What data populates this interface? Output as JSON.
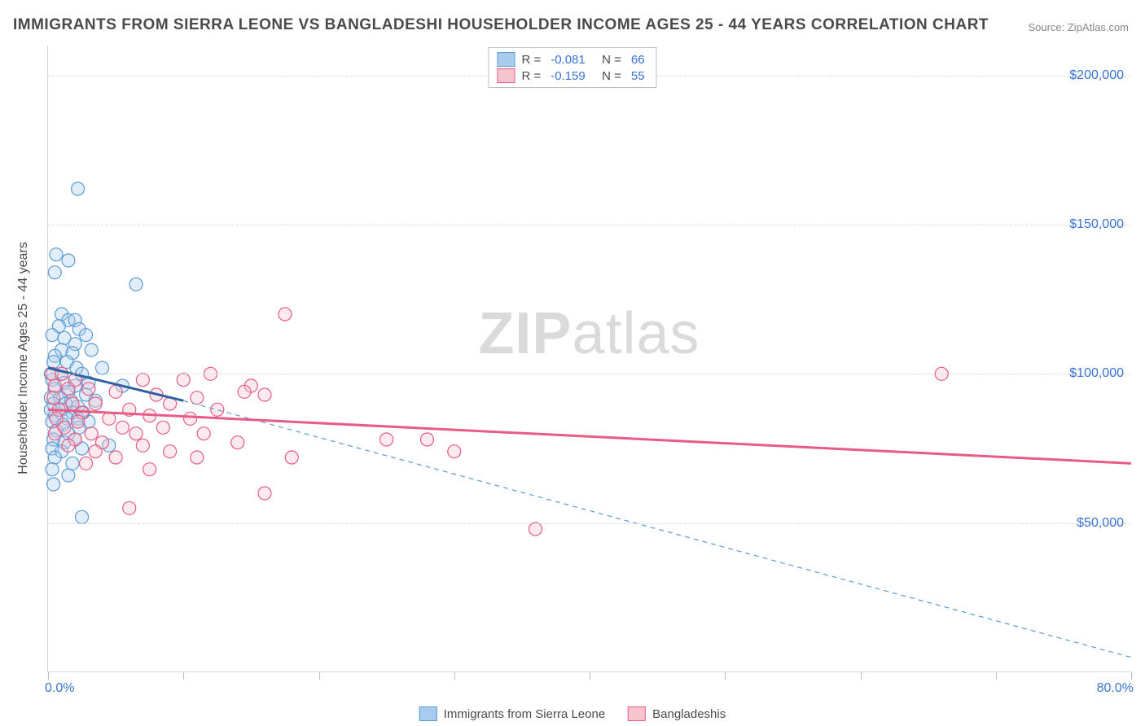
{
  "title": "IMMIGRANTS FROM SIERRA LEONE VS BANGLADESHI HOUSEHOLDER INCOME AGES 25 - 44 YEARS CORRELATION CHART",
  "source": "Source: ZipAtlas.com",
  "watermark_bold": "ZIP",
  "watermark_light": "atlas",
  "yaxis_title": "Householder Income Ages 25 - 44 years",
  "chart": {
    "type": "scatter",
    "xlim": [
      0,
      80
    ],
    "ylim": [
      0,
      210000
    ],
    "x_label_min": "0.0%",
    "x_label_max": "80.0%",
    "y_gridlines": [
      50000,
      100000,
      150000,
      200000
    ],
    "y_labels": [
      "$50,000",
      "$100,000",
      "$150,000",
      "$200,000"
    ],
    "x_ticks": [
      0,
      10,
      20,
      30,
      40,
      50,
      60,
      70,
      80
    ],
    "background_color": "#ffffff",
    "grid_color": "#dcdcdc",
    "axis_color": "#d8d8d8",
    "label_color": "#3973d4",
    "text_color": "#4a4a4a",
    "point_radius": 8,
    "series": [
      {
        "name": "Immigrants from Sierra Leone",
        "color_fill": "#a8cbee",
        "color_stroke": "#5b9bd5",
        "line_color": "#2e5fa3",
        "R": "-0.081",
        "N": "66",
        "trend": {
          "x1": 0,
          "y1": 102000,
          "x2": 10,
          "y2": 91000,
          "dash_extend_x": 80,
          "dash_extend_y": 5000
        },
        "points": [
          [
            2.2,
            162000
          ],
          [
            0.6,
            140000
          ],
          [
            1.5,
            138000
          ],
          [
            0.5,
            134000
          ],
          [
            6.5,
            130000
          ],
          [
            1.0,
            120000
          ],
          [
            1.5,
            118000
          ],
          [
            2.0,
            118000
          ],
          [
            0.8,
            116000
          ],
          [
            2.3,
            115000
          ],
          [
            0.3,
            113000
          ],
          [
            1.2,
            112000
          ],
          [
            2.8,
            113000
          ],
          [
            2.0,
            110000
          ],
          [
            1.0,
            108000
          ],
          [
            0.5,
            106000
          ],
          [
            1.8,
            107000
          ],
          [
            3.2,
            108000
          ],
          [
            0.4,
            104000
          ],
          [
            1.4,
            104000
          ],
          [
            2.1,
            102000
          ],
          [
            0.2,
            100000
          ],
          [
            1.0,
            100000
          ],
          [
            2.5,
            100000
          ],
          [
            4.0,
            102000
          ],
          [
            0.3,
            98000
          ],
          [
            1.2,
            97000
          ],
          [
            2.0,
            96000
          ],
          [
            3.0,
            97000
          ],
          [
            0.5,
            95000
          ],
          [
            1.5,
            94000
          ],
          [
            2.8,
            93000
          ],
          [
            5.5,
            96000
          ],
          [
            0.2,
            92000
          ],
          [
            0.9,
            92000
          ],
          [
            1.7,
            91000
          ],
          [
            3.5,
            91000
          ],
          [
            0.4,
            90000
          ],
          [
            1.3,
            90000
          ],
          [
            2.2,
            89000
          ],
          [
            0.2,
            88000
          ],
          [
            1.0,
            88000
          ],
          [
            1.8,
            87000
          ],
          [
            2.6,
            87000
          ],
          [
            0.5,
            86000
          ],
          [
            1.4,
            85000
          ],
          [
            2.2,
            85000
          ],
          [
            3.0,
            84000
          ],
          [
            0.3,
            84000
          ],
          [
            1.1,
            83000
          ],
          [
            2.3,
            82000
          ],
          [
            0.6,
            81000
          ],
          [
            1.5,
            80000
          ],
          [
            0.4,
            78000
          ],
          [
            1.2,
            77000
          ],
          [
            2.0,
            78000
          ],
          [
            0.3,
            75000
          ],
          [
            1.0,
            74000
          ],
          [
            2.5,
            75000
          ],
          [
            4.5,
            76000
          ],
          [
            0.5,
            72000
          ],
          [
            1.8,
            70000
          ],
          [
            0.3,
            68000
          ],
          [
            1.5,
            66000
          ],
          [
            0.4,
            63000
          ],
          [
            2.5,
            52000
          ]
        ]
      },
      {
        "name": "Bangladeshis",
        "color_fill": "#f6c3cf",
        "color_stroke": "#e85b85",
        "line_color": "#e85b85",
        "R": "-0.159",
        "N": "55",
        "trend": {
          "x1": 0,
          "y1": 88000,
          "x2": 80,
          "y2": 70000
        },
        "points": [
          [
            17.5,
            120000
          ],
          [
            0.3,
            100000
          ],
          [
            1.0,
            100000
          ],
          [
            2.0,
            98000
          ],
          [
            66.0,
            100000
          ],
          [
            12.0,
            100000
          ],
          [
            10.0,
            98000
          ],
          [
            15.0,
            96000
          ],
          [
            7.0,
            98000
          ],
          [
            0.5,
            96000
          ],
          [
            1.5,
            95000
          ],
          [
            3.0,
            95000
          ],
          [
            5.0,
            94000
          ],
          [
            14.5,
            94000
          ],
          [
            8.0,
            93000
          ],
          [
            11.0,
            92000
          ],
          [
            16.0,
            93000
          ],
          [
            0.4,
            92000
          ],
          [
            1.8,
            90000
          ],
          [
            3.5,
            90000
          ],
          [
            6.0,
            88000
          ],
          [
            9.0,
            90000
          ],
          [
            12.5,
            88000
          ],
          [
            0.8,
            88000
          ],
          [
            2.5,
            87000
          ],
          [
            4.5,
            85000
          ],
          [
            7.5,
            86000
          ],
          [
            10.5,
            85000
          ],
          [
            0.6,
            85000
          ],
          [
            2.2,
            84000
          ],
          [
            5.5,
            82000
          ],
          [
            8.5,
            82000
          ],
          [
            1.2,
            82000
          ],
          [
            3.2,
            80000
          ],
          [
            6.5,
            80000
          ],
          [
            11.5,
            80000
          ],
          [
            0.5,
            80000
          ],
          [
            2.0,
            78000
          ],
          [
            4.0,
            77000
          ],
          [
            7.0,
            76000
          ],
          [
            14.0,
            77000
          ],
          [
            1.5,
            76000
          ],
          [
            3.5,
            74000
          ],
          [
            9.0,
            74000
          ],
          [
            5.0,
            72000
          ],
          [
            11.0,
            72000
          ],
          [
            18.0,
            72000
          ],
          [
            2.8,
            70000
          ],
          [
            7.5,
            68000
          ],
          [
            16.0,
            60000
          ],
          [
            25.0,
            78000
          ],
          [
            28.0,
            78000
          ],
          [
            30.0,
            74000
          ],
          [
            6.0,
            55000
          ],
          [
            36.0,
            48000
          ]
        ]
      }
    ],
    "bottom_legend": [
      {
        "label": "Immigrants from Sierra Leone",
        "fill": "#a8cbee",
        "stroke": "#5b9bd5"
      },
      {
        "label": "Bangladeshis",
        "fill": "#f6c3cf",
        "stroke": "#e85b85"
      }
    ]
  }
}
